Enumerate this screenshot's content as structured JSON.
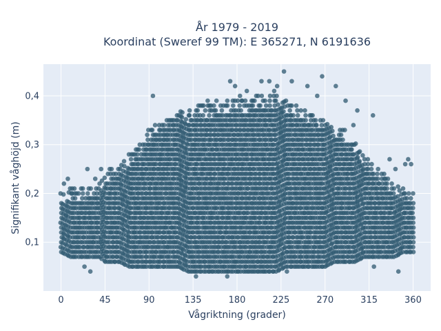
{
  "chart_data": {
    "type": "scatter",
    "title": "År 1979 - 2019",
    "subtitle": "Koordinat (Sweref 99 TM): E 365271, N 6191636",
    "xlabel": "Vågriktning (grader)",
    "ylabel": "Signifikant våghöjd (m)",
    "xlim": [
      -18,
      378
    ],
    "ylim": [
      0.0,
      0.465
    ],
    "x_ticks": [
      0,
      45,
      90,
      135,
      180,
      225,
      270,
      315,
      360
    ],
    "x_tick_labels": [
      "0",
      "45",
      "90",
      "135",
      "180",
      "225",
      "270",
      "315",
      "360"
    ],
    "y_ticks": [
      0.1,
      0.2,
      0.3,
      0.4
    ],
    "y_tick_labels": [
      "0,1",
      "0,2",
      "0,3",
      "0,4"
    ],
    "grid": true,
    "legend": "none",
    "marker_color": "#2f5970",
    "envelope": {
      "x": [
        0,
        10,
        20,
        30,
        40,
        45,
        50,
        60,
        70,
        80,
        90,
        100,
        110,
        120,
        130,
        140,
        150,
        160,
        170,
        180,
        190,
        200,
        210,
        220,
        230,
        240,
        250,
        260,
        270,
        280,
        290,
        300,
        310,
        320,
        330,
        340,
        350,
        360
      ],
      "upper": [
        0.2,
        0.21,
        0.21,
        0.21,
        0.22,
        0.24,
        0.25,
        0.26,
        0.28,
        0.3,
        0.33,
        0.35,
        0.36,
        0.37,
        0.37,
        0.38,
        0.38,
        0.38,
        0.39,
        0.39,
        0.39,
        0.4,
        0.4,
        0.4,
        0.39,
        0.38,
        0.37,
        0.36,
        0.35,
        0.34,
        0.33,
        0.31,
        0.28,
        0.26,
        0.24,
        0.22,
        0.21,
        0.2
      ],
      "lower": [
        0.08,
        0.07,
        0.07,
        0.07,
        0.07,
        0.06,
        0.06,
        0.06,
        0.05,
        0.05,
        0.05,
        0.05,
        0.05,
        0.05,
        0.04,
        0.04,
        0.04,
        0.04,
        0.04,
        0.04,
        0.04,
        0.04,
        0.04,
        0.04,
        0.05,
        0.05,
        0.05,
        0.05,
        0.05,
        0.06,
        0.06,
        0.06,
        0.07,
        0.07,
        0.07,
        0.07,
        0.08,
        0.08
      ]
    },
    "outliers": {
      "x": [
        27,
        35,
        41,
        94,
        150,
        159,
        166,
        173,
        178,
        183,
        190,
        195,
        205,
        213,
        218,
        221,
        228,
        236,
        252,
        262,
        267,
        281,
        291,
        303,
        319,
        336,
        342,
        352,
        355,
        358,
        299,
        30,
        24,
        138,
        170,
        231,
        320,
        345,
        3,
        7
      ],
      "y": [
        0.25,
        0.23,
        0.25,
        0.4,
        0.39,
        0.39,
        0.38,
        0.43,
        0.42,
        0.4,
        0.41,
        0.39,
        0.43,
        0.43,
        0.41,
        0.42,
        0.45,
        0.43,
        0.42,
        0.4,
        0.44,
        0.42,
        0.39,
        0.37,
        0.36,
        0.27,
        0.25,
        0.26,
        0.27,
        0.26,
        0.34,
        0.04,
        0.05,
        0.03,
        0.03,
        0.04,
        0.05,
        0.04,
        0.22,
        0.23
      ]
    }
  }
}
